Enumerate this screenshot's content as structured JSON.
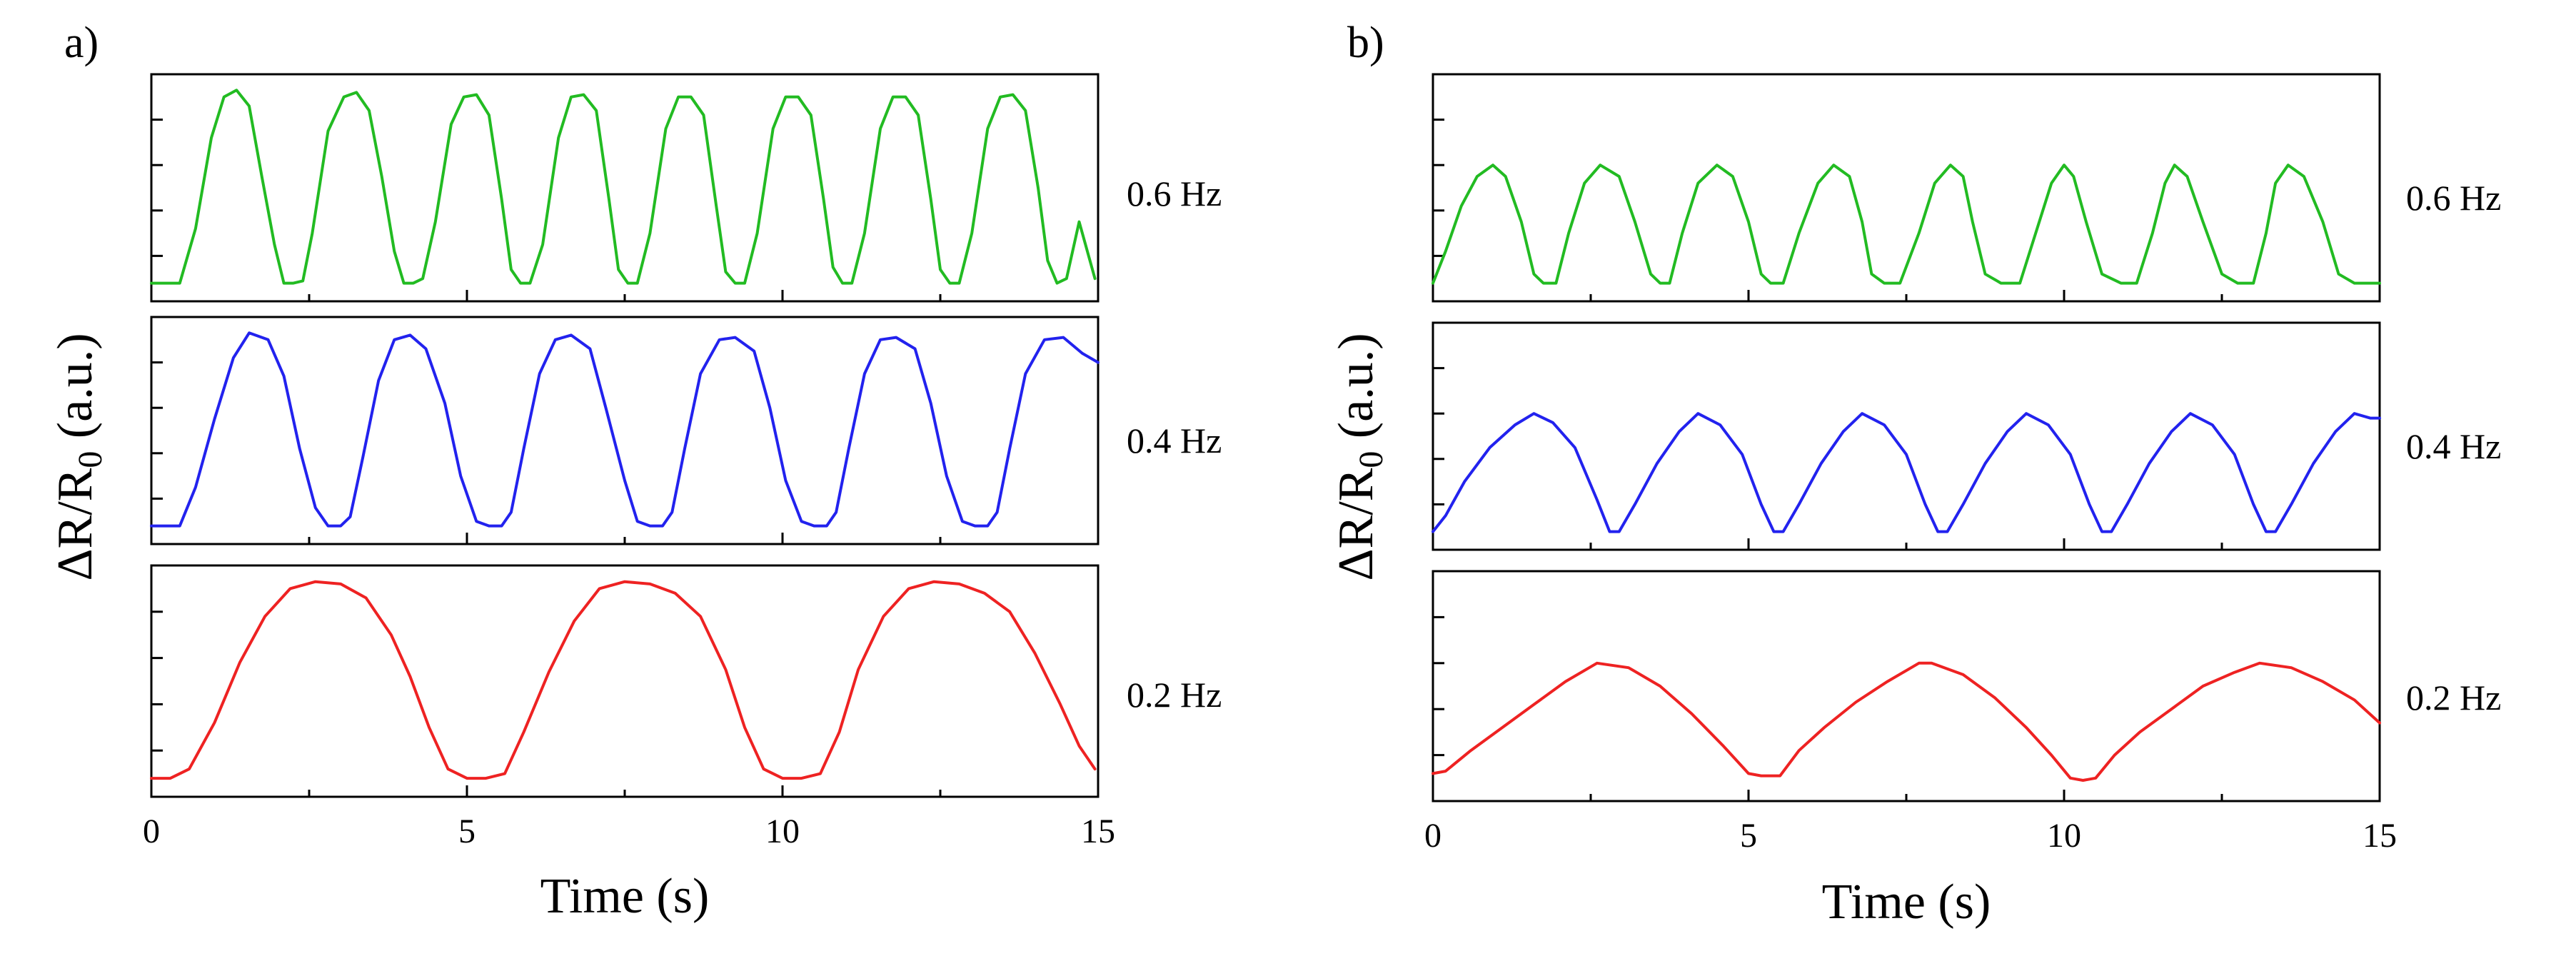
{
  "chart_data": [
    {
      "type": "line",
      "panel_label": "a)",
      "ylabel": "ΔR/R",
      "ylabel_subscript": "0",
      "ylabel_unit": " (a.u.)",
      "xlabel": "Time (s)",
      "xlim": [
        0,
        15
      ],
      "ylim": [
        0,
        1
      ],
      "x_ticks": [
        0,
        5,
        10,
        15
      ],
      "x_tick_labels": [
        "0",
        "5",
        "10",
        "15"
      ],
      "subplots": [
        {
          "label": "0.6 Hz",
          "color": "#22bb22",
          "x": [
            0,
            0.15,
            0.45,
            0.7,
            0.95,
            1.15,
            1.35,
            1.55,
            1.75,
            1.95,
            2.1,
            2.25,
            2.4,
            2.55,
            2.8,
            3.05,
            3.25,
            3.45,
            3.65,
            3.85,
            4.0,
            4.15,
            4.3,
            4.5,
            4.75,
            4.95,
            5.15,
            5.35,
            5.55,
            5.7,
            5.85,
            6.0,
            6.2,
            6.45,
            6.65,
            6.85,
            7.05,
            7.25,
            7.4,
            7.55,
            7.7,
            7.9,
            8.15,
            8.35,
            8.55,
            8.75,
            8.95,
            9.1,
            9.25,
            9.4,
            9.6,
            9.85,
            10.05,
            10.25,
            10.45,
            10.65,
            10.8,
            10.95,
            11.1,
            11.3,
            11.55,
            11.75,
            11.95,
            12.15,
            12.35,
            12.5,
            12.65,
            12.8,
            13.0,
            13.25,
            13.45,
            13.65,
            13.85,
            14.05,
            14.2,
            14.35,
            14.5,
            14.7,
            14.95
          ],
          "y": [
            0.08,
            0.08,
            0.08,
            0.32,
            0.72,
            0.9,
            0.93,
            0.86,
            0.55,
            0.25,
            0.08,
            0.08,
            0.09,
            0.3,
            0.75,
            0.9,
            0.92,
            0.84,
            0.55,
            0.22,
            0.08,
            0.08,
            0.1,
            0.35,
            0.78,
            0.9,
            0.91,
            0.82,
            0.45,
            0.14,
            0.08,
            0.08,
            0.25,
            0.72,
            0.9,
            0.91,
            0.84,
            0.45,
            0.14,
            0.08,
            0.08,
            0.3,
            0.76,
            0.9,
            0.9,
            0.82,
            0.42,
            0.13,
            0.08,
            0.08,
            0.3,
            0.76,
            0.9,
            0.9,
            0.82,
            0.45,
            0.15,
            0.08,
            0.08,
            0.3,
            0.76,
            0.9,
            0.9,
            0.82,
            0.45,
            0.14,
            0.08,
            0.08,
            0.3,
            0.76,
            0.9,
            0.91,
            0.84,
            0.5,
            0.18,
            0.08,
            0.1,
            0.35,
            0.1
          ]
        },
        {
          "label": "0.4 Hz",
          "color": "#2222ee",
          "x": [
            0,
            0.25,
            0.45,
            0.7,
            1.0,
            1.3,
            1.55,
            1.85,
            2.1,
            2.35,
            2.6,
            2.8,
            3.0,
            3.15,
            3.35,
            3.6,
            3.85,
            4.1,
            4.35,
            4.65,
            4.9,
            5.15,
            5.35,
            5.55,
            5.7,
            5.9,
            6.15,
            6.4,
            6.65,
            6.95,
            7.2,
            7.5,
            7.7,
            7.9,
            8.1,
            8.25,
            8.45,
            8.7,
            9.0,
            9.25,
            9.55,
            9.8,
            10.05,
            10.3,
            10.5,
            10.7,
            10.85,
            11.05,
            11.3,
            11.55,
            11.8,
            12.1,
            12.35,
            12.6,
            12.85,
            13.05,
            13.25,
            13.4,
            13.6,
            13.85,
            14.15,
            14.45,
            14.75,
            15.0
          ],
          "y": [
            0.08,
            0.08,
            0.08,
            0.25,
            0.55,
            0.82,
            0.93,
            0.9,
            0.74,
            0.42,
            0.16,
            0.08,
            0.08,
            0.12,
            0.38,
            0.72,
            0.9,
            0.92,
            0.86,
            0.62,
            0.3,
            0.1,
            0.08,
            0.08,
            0.14,
            0.42,
            0.75,
            0.9,
            0.92,
            0.86,
            0.6,
            0.28,
            0.1,
            0.08,
            0.08,
            0.14,
            0.42,
            0.75,
            0.9,
            0.91,
            0.85,
            0.6,
            0.28,
            0.1,
            0.08,
            0.08,
            0.14,
            0.42,
            0.75,
            0.9,
            0.91,
            0.86,
            0.62,
            0.3,
            0.1,
            0.08,
            0.08,
            0.14,
            0.42,
            0.75,
            0.9,
            0.91,
            0.84,
            0.8
          ]
        },
        {
          "label": "0.2 Hz",
          "color": "#ee2222",
          "x": [
            0,
            0.3,
            0.6,
            1.0,
            1.4,
            1.8,
            2.2,
            2.6,
            3.0,
            3.4,
            3.8,
            4.1,
            4.4,
            4.7,
            5.0,
            5.3,
            5.6,
            5.9,
            6.3,
            6.7,
            7.1,
            7.5,
            7.9,
            8.3,
            8.7,
            9.1,
            9.4,
            9.7,
            10.0,
            10.3,
            10.6,
            10.9,
            11.2,
            11.6,
            12.0,
            12.4,
            12.8,
            13.2,
            13.6,
            14.0,
            14.4,
            14.7,
            14.95
          ],
          "y": [
            0.08,
            0.08,
            0.12,
            0.32,
            0.58,
            0.78,
            0.9,
            0.93,
            0.92,
            0.86,
            0.7,
            0.52,
            0.3,
            0.12,
            0.08,
            0.08,
            0.1,
            0.28,
            0.54,
            0.76,
            0.9,
            0.93,
            0.92,
            0.88,
            0.78,
            0.55,
            0.3,
            0.12,
            0.08,
            0.08,
            0.1,
            0.28,
            0.55,
            0.78,
            0.9,
            0.93,
            0.92,
            0.88,
            0.8,
            0.62,
            0.4,
            0.22,
            0.12
          ]
        }
      ]
    },
    {
      "type": "line",
      "panel_label": "b)",
      "ylabel": "ΔR/R",
      "ylabel_subscript": "0",
      "ylabel_unit": " (a.u.)",
      "xlabel": "Time (s)",
      "xlim": [
        0,
        15
      ],
      "ylim": [
        0,
        1
      ],
      "x_ticks": [
        0,
        5,
        10,
        15
      ],
      "x_tick_labels": [
        "0",
        "5",
        "10",
        "15"
      ],
      "subplots": [
        {
          "label": "0.6 Hz",
          "color": "#22bb22",
          "x": [
            0,
            0.2,
            0.45,
            0.7,
            0.95,
            1.15,
            1.4,
            1.6,
            1.75,
            1.95,
            2.15,
            2.4,
            2.65,
            2.95,
            3.2,
            3.45,
            3.6,
            3.75,
            3.95,
            4.2,
            4.5,
            4.75,
            5.0,
            5.2,
            5.35,
            5.55,
            5.8,
            6.1,
            6.35,
            6.6,
            6.8,
            6.95,
            7.15,
            7.4,
            7.7,
            7.95,
            8.2,
            8.4,
            8.55,
            8.75,
            9.0,
            9.3,
            9.55,
            9.8,
            10.0,
            10.15,
            10.35,
            10.6,
            10.9,
            11.15,
            11.4,
            11.6,
            11.75,
            11.95,
            12.2,
            12.5,
            12.75,
            13.0,
            13.2,
            13.35,
            13.55,
            13.8,
            14.1,
            14.35,
            14.6,
            14.8,
            15.0
          ],
          "y": [
            0.08,
            0.22,
            0.42,
            0.55,
            0.6,
            0.55,
            0.35,
            0.12,
            0.08,
            0.08,
            0.3,
            0.52,
            0.6,
            0.55,
            0.35,
            0.12,
            0.08,
            0.08,
            0.3,
            0.52,
            0.6,
            0.55,
            0.35,
            0.12,
            0.08,
            0.08,
            0.3,
            0.52,
            0.6,
            0.55,
            0.35,
            0.12,
            0.08,
            0.08,
            0.3,
            0.52,
            0.6,
            0.55,
            0.35,
            0.12,
            0.08,
            0.08,
            0.3,
            0.52,
            0.6,
            0.55,
            0.35,
            0.12,
            0.08,
            0.08,
            0.3,
            0.52,
            0.6,
            0.55,
            0.35,
            0.12,
            0.08,
            0.08,
            0.3,
            0.52,
            0.6,
            0.55,
            0.35,
            0.12,
            0.08,
            0.08,
            0.08
          ]
        },
        {
          "label": "0.4 Hz",
          "color": "#2222ee",
          "x": [
            0,
            0.2,
            0.5,
            0.9,
            1.3,
            1.6,
            1.9,
            2.25,
            2.6,
            2.8,
            2.95,
            3.2,
            3.55,
            3.9,
            4.2,
            4.55,
            4.9,
            5.2,
            5.4,
            5.55,
            5.8,
            6.15,
            6.5,
            6.8,
            7.15,
            7.5,
            7.8,
            8.0,
            8.15,
            8.4,
            8.75,
            9.1,
            9.4,
            9.75,
            10.1,
            10.4,
            10.6,
            10.75,
            11.0,
            11.35,
            11.7,
            12.0,
            12.35,
            12.7,
            13.0,
            13.2,
            13.35,
            13.6,
            13.95,
            14.3,
            14.6,
            14.85,
            15.0
          ],
          "y": [
            0.08,
            0.15,
            0.3,
            0.45,
            0.55,
            0.6,
            0.56,
            0.45,
            0.22,
            0.08,
            0.08,
            0.2,
            0.38,
            0.52,
            0.6,
            0.55,
            0.42,
            0.2,
            0.08,
            0.08,
            0.2,
            0.38,
            0.52,
            0.6,
            0.55,
            0.42,
            0.2,
            0.08,
            0.08,
            0.2,
            0.38,
            0.52,
            0.6,
            0.55,
            0.42,
            0.2,
            0.08,
            0.08,
            0.2,
            0.38,
            0.52,
            0.6,
            0.55,
            0.42,
            0.2,
            0.08,
            0.08,
            0.2,
            0.38,
            0.52,
            0.6,
            0.58,
            0.58
          ]
        },
        {
          "label": "0.2 Hz",
          "color": "#ee2222",
          "x": [
            0,
            0.2,
            0.6,
            1.1,
            1.6,
            2.1,
            2.6,
            3.1,
            3.6,
            4.1,
            4.6,
            5.0,
            5.2,
            5.5,
            5.8,
            6.2,
            6.7,
            7.2,
            7.7,
            7.9,
            8.4,
            8.9,
            9.4,
            9.8,
            10.1,
            10.3,
            10.5,
            10.8,
            11.2,
            11.7,
            12.2,
            12.7,
            13.1,
            13.6,
            14.1,
            14.6,
            15.0
          ],
          "y": [
            0.12,
            0.13,
            0.22,
            0.32,
            0.42,
            0.52,
            0.6,
            0.58,
            0.5,
            0.38,
            0.24,
            0.12,
            0.11,
            0.11,
            0.22,
            0.32,
            0.43,
            0.52,
            0.6,
            0.6,
            0.55,
            0.45,
            0.32,
            0.2,
            0.1,
            0.09,
            0.1,
            0.2,
            0.3,
            0.4,
            0.5,
            0.56,
            0.6,
            0.58,
            0.52,
            0.44,
            0.34
          ]
        }
      ]
    }
  ]
}
